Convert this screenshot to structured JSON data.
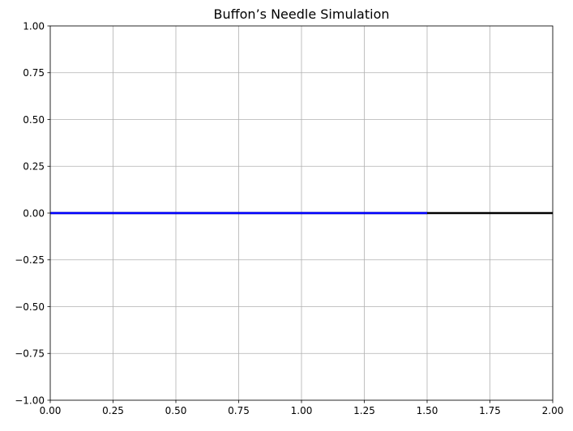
{
  "chart_data": {
    "type": "line",
    "title": "Buffon’s Needle Simulation",
    "xlabel": "",
    "ylabel": "",
    "xlim": [
      0,
      2
    ],
    "ylim": [
      -1,
      1
    ],
    "grid": true,
    "x_ticks": [
      0,
      0.25,
      0.5,
      0.75,
      1,
      1.25,
      1.5,
      1.75,
      2
    ],
    "x_tick_labels": [
      "0.00",
      "0.25",
      "0.50",
      "0.75",
      "1.00",
      "1.25",
      "1.50",
      "1.75",
      "2.00"
    ],
    "y_ticks": [
      -1,
      -0.75,
      -0.5,
      -0.25,
      0,
      0.25,
      0.5,
      0.75,
      1
    ],
    "y_tick_labels": [
      "−1.00",
      "−0.75",
      "−0.50",
      "−0.25",
      "0.00",
      "0.25",
      "0.50",
      "0.75",
      "1.00"
    ],
    "series": [
      {
        "color": "#000000",
        "x": [
          0,
          2
        ],
        "y": [
          0,
          0
        ]
      },
      {
        "color": "#0000ff",
        "x": [
          0,
          1.5
        ],
        "y": [
          0,
          0
        ]
      }
    ]
  }
}
